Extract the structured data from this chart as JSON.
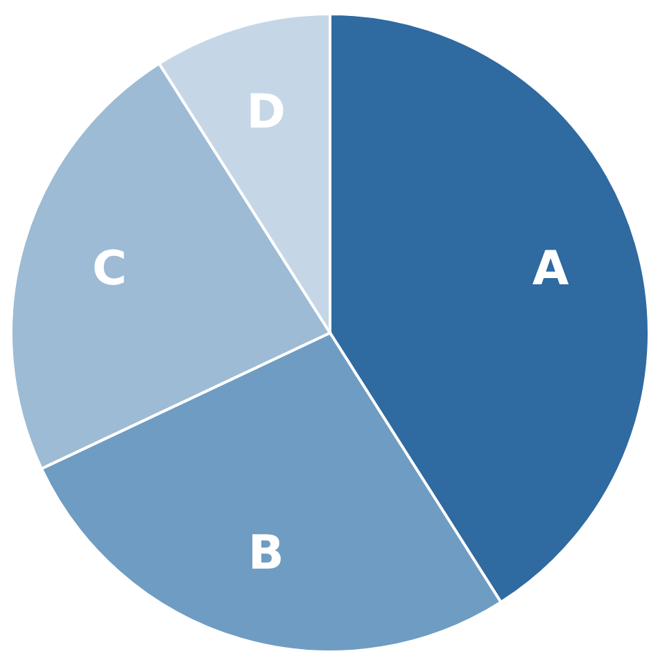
{
  "chart_data": {
    "type": "pie",
    "categories": [
      "A",
      "B",
      "C",
      "D"
    ],
    "values": [
      41,
      27,
      23,
      9
    ],
    "colors": [
      "#2f6aa0",
      "#6f9cc2",
      "#9dbbd4",
      "#c5d7e7"
    ]
  }
}
